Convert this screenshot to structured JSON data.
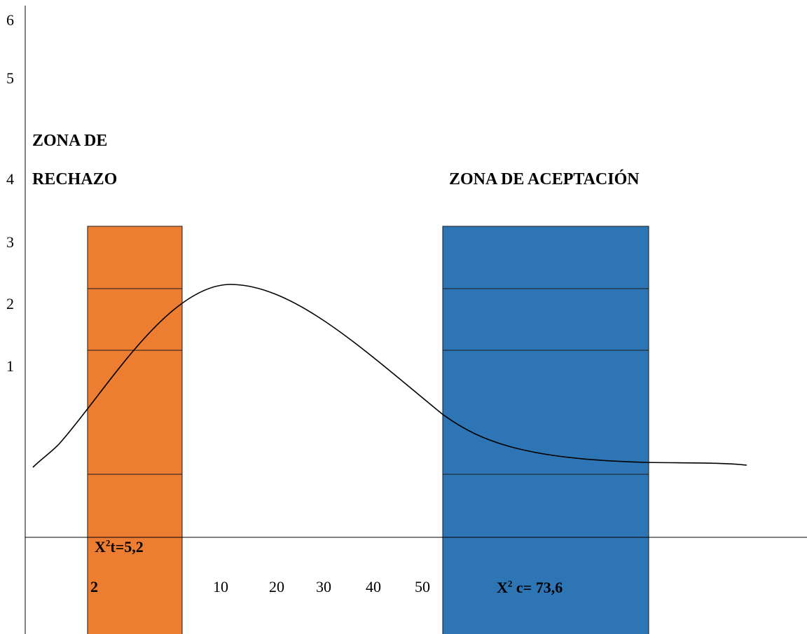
{
  "y_ticks": [
    "6",
    "5",
    "4",
    "3",
    "2",
    "1"
  ],
  "x_ticks": [
    "2",
    "10",
    "20",
    "30",
    "40",
    "50"
  ],
  "zones": {
    "rejection": {
      "line1": "ZONA DE",
      "line2": "RECHAZO",
      "color": "#ED7D31"
    },
    "acceptance": {
      "label": "ZONA DE ACEPTACIÓN",
      "color": "#2E75B6"
    }
  },
  "critical_values": {
    "table": {
      "symbol": "X",
      "exponent": "2",
      "rest": "t=5,2"
    },
    "calculated": {
      "symbol": "X",
      "exponent": "2",
      "rest": " c= 73,6"
    }
  }
}
